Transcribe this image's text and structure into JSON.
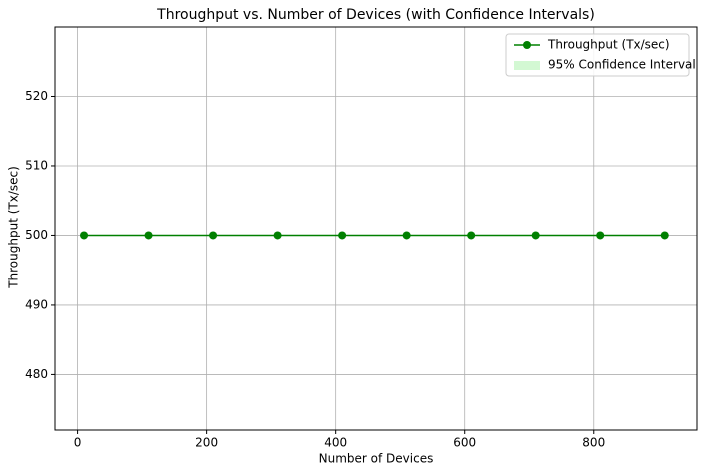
{
  "chart_data": {
    "type": "line",
    "title": "Throughput vs. Number of Devices (with Confidence Intervals)",
    "xlabel": "Number of Devices",
    "ylabel": "Throughput (Tx/sec)",
    "x": [
      10,
      110,
      210,
      310,
      410,
      510,
      610,
      710,
      810,
      910
    ],
    "series": [
      {
        "name": "Throughput (Tx/sec)",
        "color": "#008000",
        "values": [
          500,
          500,
          500,
          500,
          500,
          500,
          500,
          500,
          500,
          500
        ]
      },
      {
        "name": "95% Confidence Interval",
        "color": "#90ee90",
        "band": true,
        "lower": [
          500,
          500,
          500,
          500,
          500,
          500,
          500,
          500,
          500,
          500
        ],
        "upper": [
          500,
          500,
          500,
          500,
          500,
          500,
          500,
          500,
          500,
          500
        ]
      }
    ],
    "xlim": [
      -35,
      960
    ],
    "ylim": [
      472,
      530
    ],
    "xticks": [
      0,
      200,
      400,
      600,
      800
    ],
    "yticks": [
      480,
      490,
      500,
      510,
      520
    ],
    "grid": true,
    "legend": "upper right"
  }
}
